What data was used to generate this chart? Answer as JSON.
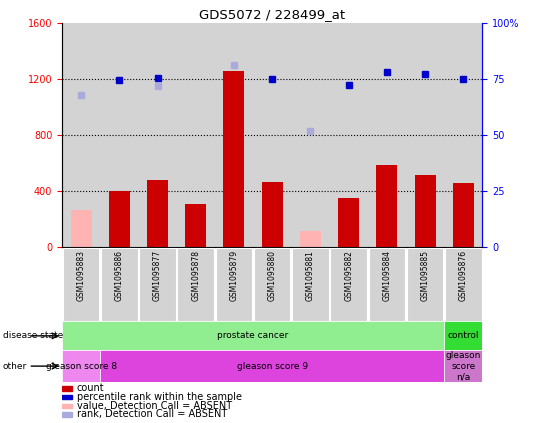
{
  "title": "GDS5072 / 228499_at",
  "samples": [
    "GSM1095883",
    "GSM1095886",
    "GSM1095877",
    "GSM1095878",
    "GSM1095879",
    "GSM1095880",
    "GSM1095881",
    "GSM1095882",
    "GSM1095884",
    "GSM1095885",
    "GSM1095876"
  ],
  "counts": [
    null,
    400,
    480,
    310,
    1260,
    470,
    null,
    350,
    590,
    520,
    460
  ],
  "absent_counts": [
    270,
    null,
    null,
    null,
    null,
    null,
    120,
    null,
    null,
    null,
    null
  ],
  "ranks_raw": [
    null,
    1195,
    1210,
    null,
    null,
    1200,
    null,
    1160,
    1250,
    1240,
    1200
  ],
  "absent_ranks_raw": [
    1090,
    null,
    1155,
    null,
    1300,
    null,
    830,
    null,
    null,
    null,
    null
  ],
  "disease_state": [
    "prostate cancer",
    "prostate cancer",
    "prostate cancer",
    "prostate cancer",
    "prostate cancer",
    "prostate cancer",
    "prostate cancer",
    "prostate cancer",
    "prostate cancer",
    "prostate cancer",
    "control"
  ],
  "other": [
    "gleason score 8",
    "gleason score 9",
    "gleason score 9",
    "gleason score 9",
    "gleason score 9",
    "gleason score 9",
    "gleason score 9",
    "gleason score 9",
    "gleason score 9",
    "gleason score 9",
    "gleason score n/a"
  ],
  "ylim_left": [
    0,
    1600
  ],
  "ylim_right": [
    0,
    100
  ],
  "yticks_left": [
    0,
    400,
    800,
    1200,
    1600
  ],
  "yticks_right": [
    0,
    25,
    50,
    75,
    100
  ],
  "ytick_right_labels": [
    "0",
    "25",
    "50",
    "75",
    "100%"
  ],
  "bar_color": "#cc0000",
  "absent_bar_color": "#ffb3b3",
  "rank_color": "#0000cc",
  "absent_rank_color": "#aaaadd",
  "bar_width": 0.55,
  "disease_state_colors": {
    "prostate cancer": "#90ee90",
    "control": "#33dd33"
  },
  "other_colors": {
    "gleason score 8": "#ee88ee",
    "gleason score 9": "#dd44dd",
    "gleason score n/a": "#cc77cc"
  },
  "legend_items": [
    {
      "label": "count",
      "color": "#cc0000"
    },
    {
      "label": "percentile rank within the sample",
      "color": "#0000cc"
    },
    {
      "label": "value, Detection Call = ABSENT",
      "color": "#ffb3b3"
    },
    {
      "label": "rank, Detection Call = ABSENT",
      "color": "#aaaadd"
    }
  ]
}
